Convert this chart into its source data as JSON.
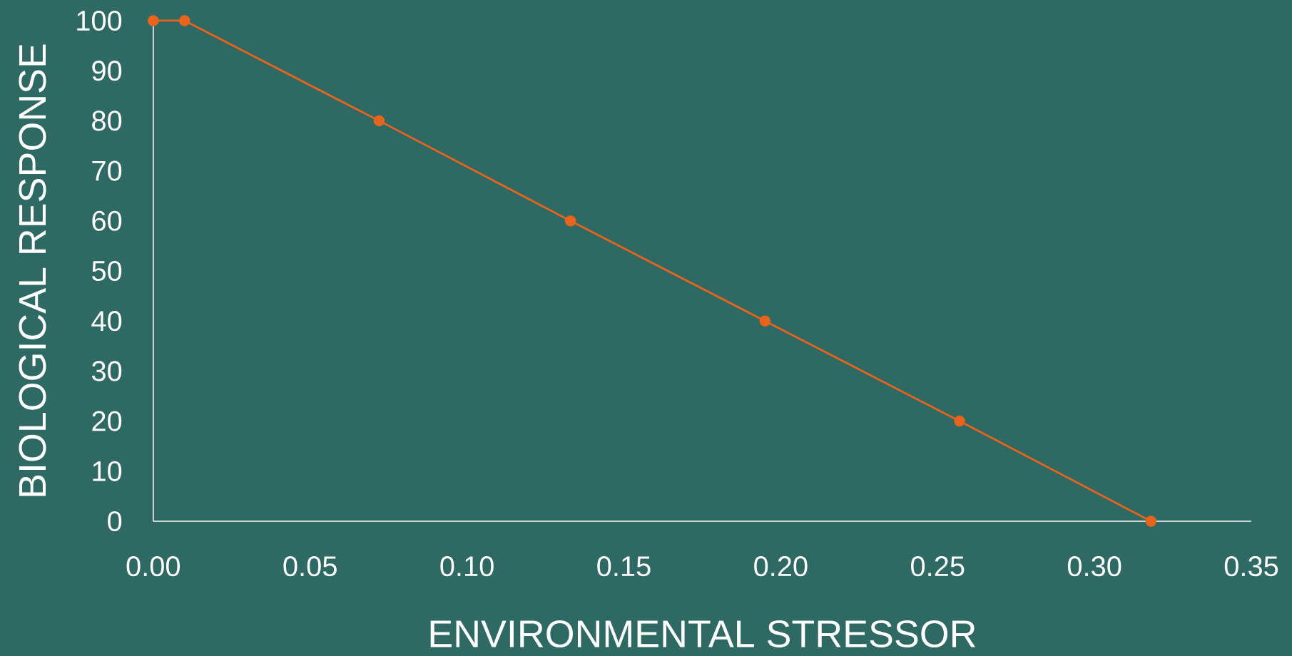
{
  "chart_data": {
    "type": "line",
    "xlabel": "ENVIRONMENTAL STRESSOR",
    "ylabel": "BIOLOGICAL RESPONSE",
    "x": [
      0,
      0.01,
      0.072,
      0.133,
      0.195,
      0.257,
      0.318
    ],
    "series": [
      {
        "color": "#e8641c",
        "values": [
          100,
          100,
          80,
          60,
          40,
          20,
          0
        ]
      }
    ],
    "xlim": [
      0,
      0.35
    ],
    "xticks": [
      {
        "value": 0,
        "label": "0.00"
      },
      {
        "value": 0.05,
        "label": "0.05"
      },
      {
        "value": 0.1,
        "label": "0.10"
      },
      {
        "value": 0.15,
        "label": "0.15"
      },
      {
        "value": 0.2,
        "label": "0.20"
      },
      {
        "value": 0.25,
        "label": "0.25"
      },
      {
        "value": 0.3,
        "label": "0.30"
      },
      {
        "value": 0.35,
        "label": "0.35"
      }
    ],
    "ylim": [
      0,
      100
    ],
    "yticks": [
      0,
      10,
      20,
      30,
      40,
      50,
      60,
      70,
      80,
      90,
      100
    ],
    "marker": "circle",
    "line_style": "solid",
    "grid": false
  }
}
